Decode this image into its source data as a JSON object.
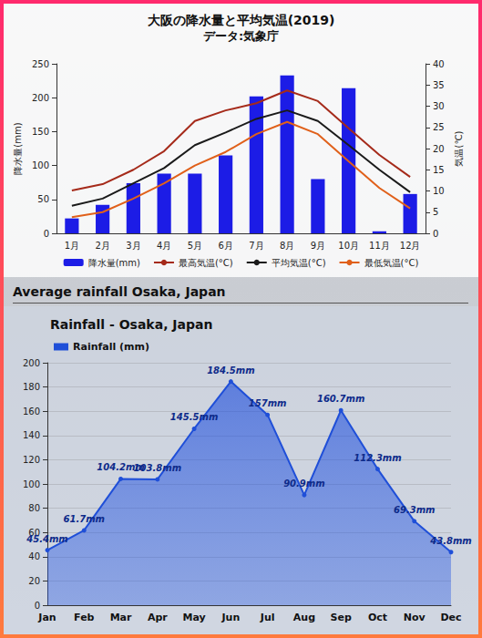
{
  "chart_data": [
    {
      "type": "bar",
      "title": "大阪の降水量と平均気温(2019)",
      "subtitle": "データ:気象庁",
      "categories": [
        "1月",
        "2月",
        "3月",
        "4月",
        "5月",
        "6月",
        "7月",
        "8月",
        "9月",
        "10月",
        "11月",
        "12月"
      ],
      "ylabel": "降水量(mm)",
      "y2label": "気温(℃)",
      "ylim": [
        0,
        250
      ],
      "yticks": [
        0,
        50,
        100,
        150,
        200,
        250
      ],
      "y2lim": [
        0,
        40
      ],
      "y2ticks": [
        0,
        5,
        10,
        15,
        20,
        25,
        30,
        35,
        40
      ],
      "grid": false,
      "legend": "bottom",
      "series": [
        {
          "name": "降水量(mm)",
          "type": "bar",
          "color": "#1c1ce6",
          "values": [
            22,
            42,
            74,
            88,
            88,
            115,
            202,
            233,
            80,
            214,
            3,
            58
          ]
        },
        {
          "name": "最高気温(°C)",
          "type": "line",
          "axis": "y2",
          "color": "#a52a1a",
          "marker": "none",
          "values": [
            10.1,
            11.6,
            15,
            19.4,
            26.5,
            29,
            30.7,
            33.7,
            31.2,
            24.8,
            18.5,
            13.3
          ]
        },
        {
          "name": "平均気温(°C)",
          "type": "line",
          "axis": "y2",
          "color": "#1a1a1a",
          "marker": "none",
          "values": [
            6.5,
            8.2,
            11.8,
            15.4,
            20.8,
            23.8,
            27,
            29,
            26.5,
            20.8,
            15,
            9.7
          ]
        },
        {
          "name": "最低気温(°C)",
          "type": "line",
          "axis": "y2",
          "color": "#e0601a",
          "marker": "none",
          "values": [
            3.8,
            5,
            8.2,
            11.8,
            16,
            19.2,
            23.4,
            26.3,
            23.4,
            17,
            10.7,
            5.9
          ]
        }
      ]
    },
    {
      "type": "area",
      "heading": "Average rainfall Osaka, Japan",
      "title": "Rainfall - Osaka, Japan",
      "categories": [
        "Jan",
        "Feb",
        "Mar",
        "Apr",
        "May",
        "Jun",
        "Jul",
        "Aug",
        "Sep",
        "Oct",
        "Nov",
        "Dec"
      ],
      "ylim": [
        0,
        200
      ],
      "yticks": [
        0,
        20,
        40,
        60,
        80,
        100,
        120,
        140,
        160,
        180,
        200
      ],
      "grid": true,
      "legend": "upper left",
      "data_labels": true,
      "series": [
        {
          "name": "Rainfall (mm)",
          "color": "#1f4fd8",
          "marker": "circle",
          "values": [
            45.4,
            61.7,
            104.2,
            103.8,
            145.5,
            184.5,
            157,
            90.9,
            160.7,
            112.3,
            69.3,
            43.8
          ],
          "value_labels": [
            "45.4mm",
            "61.7mm",
            "104.2mm",
            "103.8mm",
            "145.5mm",
            "184.5mm",
            "157mm",
            "90.9mm",
            "160.7mm",
            "112.3mm",
            "69.3mm",
            "43.8mm"
          ]
        }
      ]
    }
  ]
}
